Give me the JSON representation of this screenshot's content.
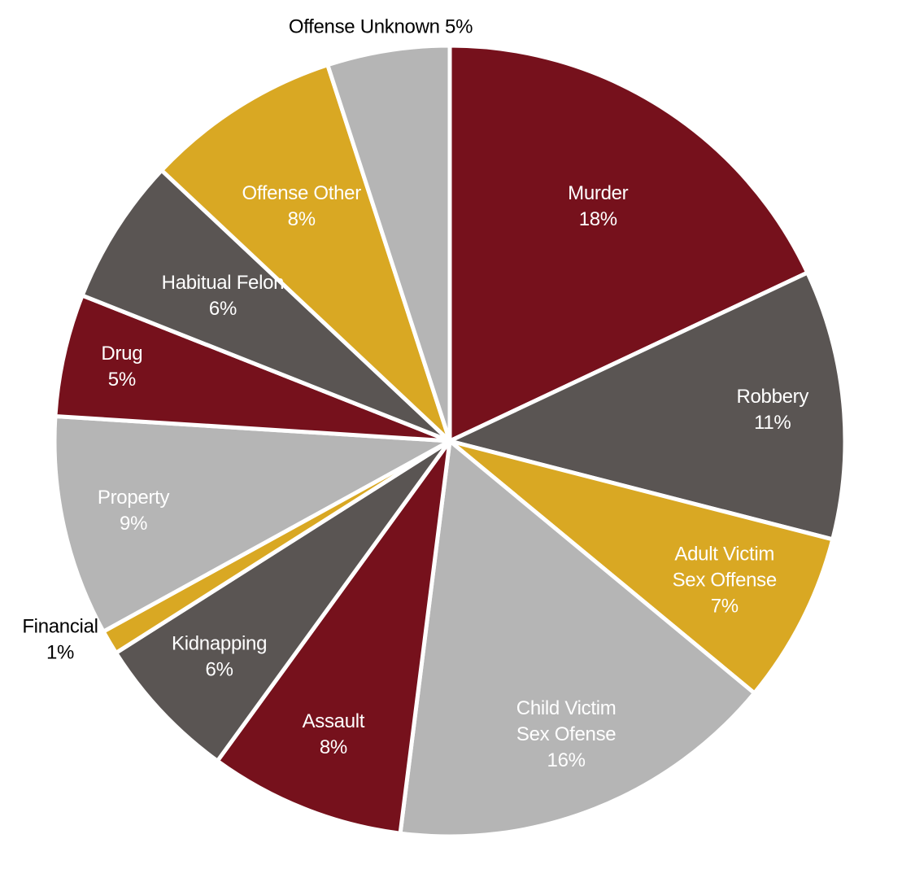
{
  "chart_data": {
    "type": "pie",
    "title": "",
    "start": "12 o'clock",
    "direction": "clockwise",
    "slices": [
      {
        "label": "Murder",
        "value": 18,
        "display": "18%",
        "color": "#76111c"
      },
      {
        "label": "Robbery",
        "value": 11,
        "display": "11%",
        "color": "#5a5553"
      },
      {
        "label": "Adult Victim Sex Offense",
        "value": 7,
        "display": "7%",
        "color": "#d9a823"
      },
      {
        "label": "Child Victim Sex Ofense",
        "value": 16,
        "display": "16%",
        "color": "#b5b5b5"
      },
      {
        "label": "Assault",
        "value": 8,
        "display": "8%",
        "color": "#76111c"
      },
      {
        "label": "Kidnapping",
        "value": 6,
        "display": "6%",
        "color": "#5a5553"
      },
      {
        "label": "Financial",
        "value": 1,
        "display": "1%",
        "color": "#d9a823"
      },
      {
        "label": "Property",
        "value": 9,
        "display": "9%",
        "color": "#b5b5b5"
      },
      {
        "label": "Drug",
        "value": 5,
        "display": "5%",
        "color": "#76111c"
      },
      {
        "label": "Habitual Felon",
        "value": 6,
        "display": "6%",
        "color": "#5a5553"
      },
      {
        "label": "Offense Other",
        "value": 8,
        "display": "8%",
        "color": "#d9a823"
      },
      {
        "label": "Offense Unknown",
        "value": 5,
        "display": "5%",
        "color": "#b5b5b5"
      }
    ],
    "label_color_inside": "#ffffff",
    "label_color_outside": "#000000"
  }
}
